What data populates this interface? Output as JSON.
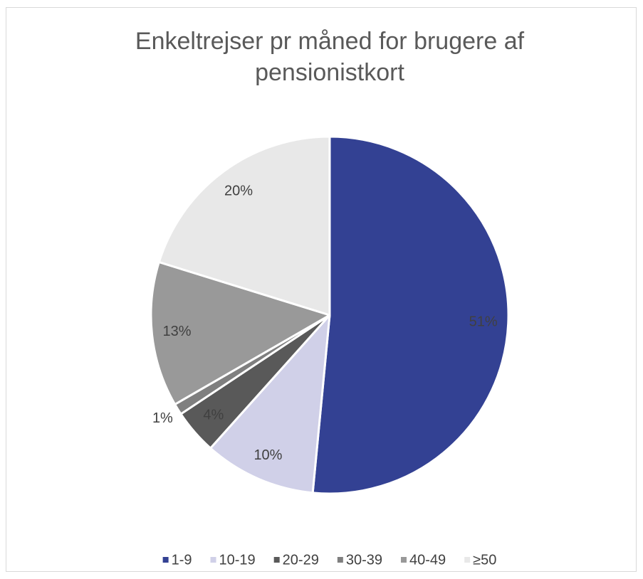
{
  "chart_data": {
    "type": "pie",
    "title": "Enkeltrejser pr måned for brugere af pensionistkort",
    "categories": [
      "1-9",
      "10-19",
      "20-29",
      "30-39",
      "40-49",
      "≥50"
    ],
    "values": [
      51,
      10,
      4,
      1,
      13,
      20
    ],
    "value_labels": [
      "51%",
      "10%",
      "4%",
      "1%",
      "13%",
      "20%"
    ],
    "colors": [
      "#334193",
      "#d0d0e8",
      "#595959",
      "#7f7f7f",
      "#999999",
      "#e8e8e8"
    ],
    "legend": "bottom"
  }
}
